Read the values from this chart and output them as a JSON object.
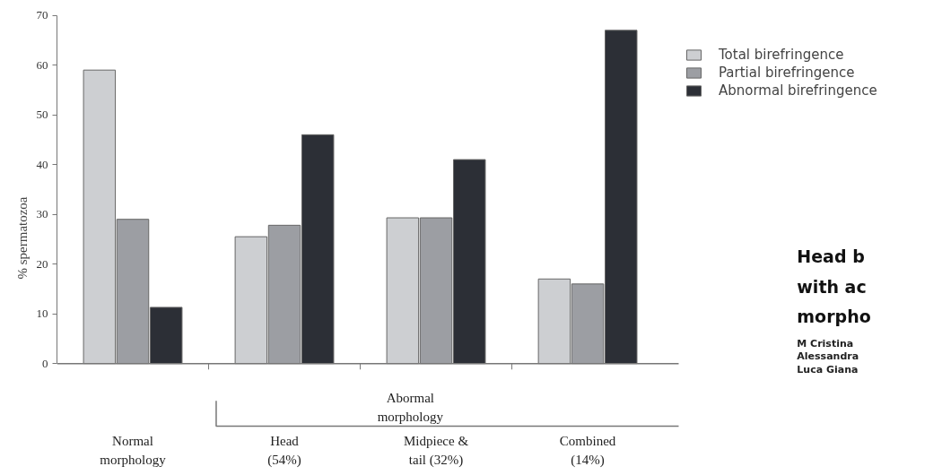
{
  "chart_data": {
    "type": "bar",
    "ylabel": "% spermatozoa",
    "categories": [
      "Normal\nmorphology",
      "Head\n(54%)",
      "Midpiece &\ntail (32%)",
      "Combined\n(14%)"
    ],
    "series": [
      {
        "name": "Total birefringence",
        "color": "#cdcfd2",
        "values": [
          59,
          25.5,
          29.3,
          17
        ]
      },
      {
        "name": "Partial birefringence",
        "color": "#9c9ea3",
        "values": [
          29,
          27.8,
          29.3,
          16
        ]
      },
      {
        "name": "Abnormal birefringence",
        "color": "#2c2f36",
        "values": [
          11.3,
          46,
          41,
          67
        ]
      }
    ],
    "ylim": [
      0,
      70
    ],
    "yticks": [
      0,
      10,
      20,
      30,
      40,
      50,
      60,
      70
    ],
    "grid": false,
    "legend": "top right",
    "annotations": [
      "Abormal\nmorphology",
      "Head b",
      "with ac",
      "morpho",
      "M Cristina",
      "Alessandra",
      "Luca Giana"
    ]
  }
}
